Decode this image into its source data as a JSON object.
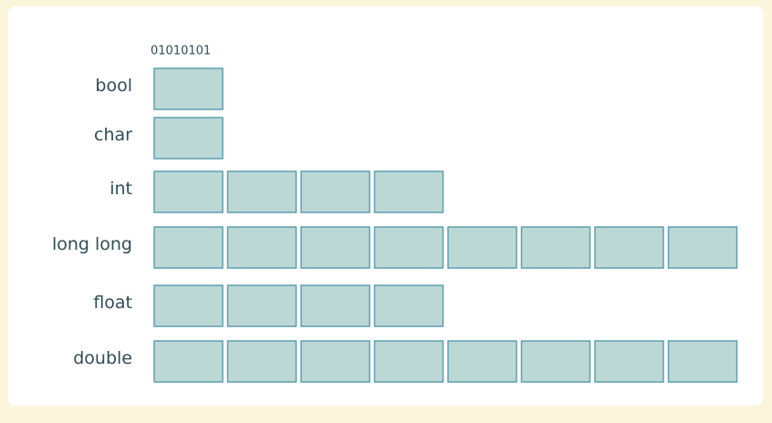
{
  "bit_label": "01010101",
  "rows": [
    {
      "label": "bool",
      "bytes": 1
    },
    {
      "label": "char",
      "bytes": 1
    },
    {
      "label": "int",
      "bytes": 4
    },
    {
      "label": "long long",
      "bytes": 8
    },
    {
      "label": "float",
      "bytes": 4
    },
    {
      "label": "double",
      "bytes": 8
    }
  ]
}
